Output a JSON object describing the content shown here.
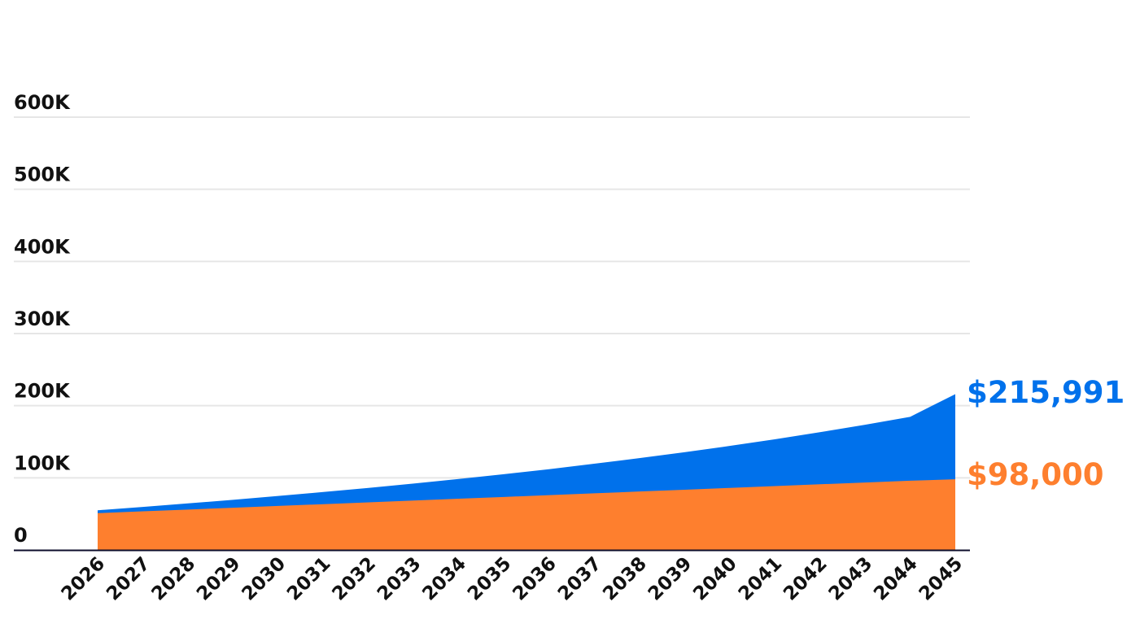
{
  "chart_data": {
    "type": "area",
    "stacked": false,
    "x": [
      "2026",
      "2027",
      "2028",
      "2029",
      "2030",
      "2031",
      "2032",
      "2033",
      "2034",
      "2035",
      "2036",
      "2037",
      "2038",
      "2039",
      "2040",
      "2041",
      "2042",
      "2043",
      "2044",
      "2045"
    ],
    "ylim": [
      0,
      600000
    ],
    "yticks": [
      {
        "value": 0,
        "label": "0"
      },
      {
        "value": 100000,
        "label": "100K"
      },
      {
        "value": 200000,
        "label": "200K"
      },
      {
        "value": 300000,
        "label": "300K"
      },
      {
        "value": 400000,
        "label": "400K"
      },
      {
        "value": 500000,
        "label": "500K"
      },
      {
        "value": 600000,
        "label": "600K"
      }
    ],
    "grid": true,
    "series": [
      {
        "key": "blue",
        "color": "#0071eb",
        "values": [
          55000,
          59700,
          64500,
          69500,
          74800,
          80300,
          86000,
          92000,
          98400,
          105000,
          112000,
          119500,
          127300,
          135500,
          144200,
          153400,
          163200,
          173600,
          184600,
          215991
        ],
        "end_label": "$215,991"
      },
      {
        "key": "orange",
        "color": "#fe7f2e",
        "values": [
          51000,
          53500,
          56000,
          58500,
          61000,
          63500,
          66000,
          68500,
          71000,
          73500,
          76000,
          78500,
          81000,
          83500,
          86000,
          88500,
          91000,
          93500,
          96000,
          98000
        ],
        "end_label": "$98,000"
      }
    ]
  }
}
